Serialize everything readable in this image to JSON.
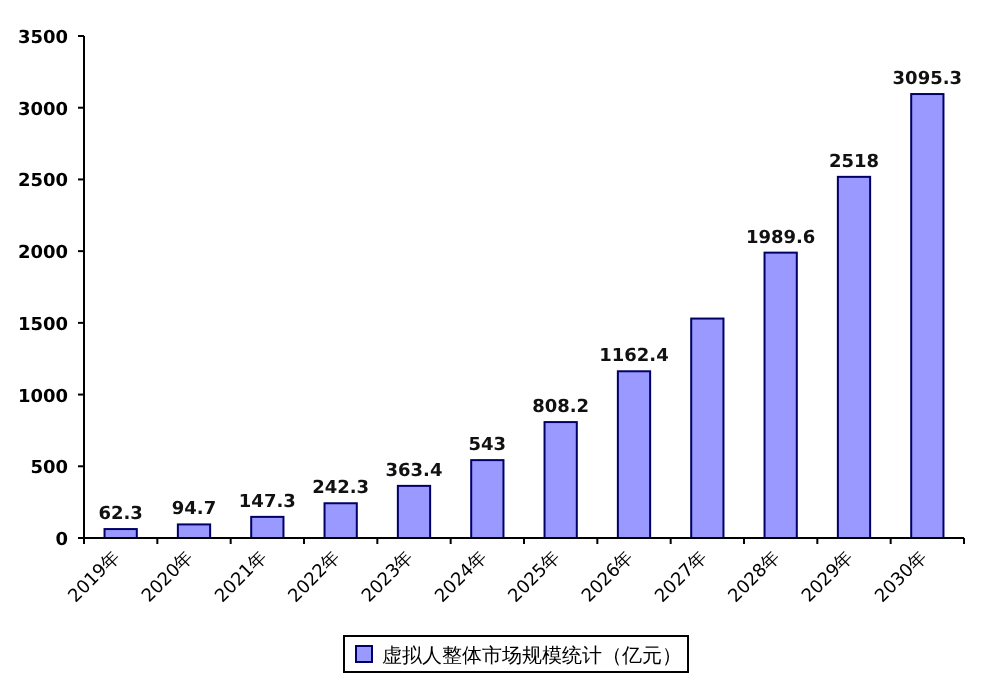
{
  "chart_data": {
    "type": "bar",
    "categories": [
      "2019年",
      "2020年",
      "2021年",
      "2022年",
      "2023年",
      "2024年",
      "2025年",
      "2026年",
      "2027年",
      "2028年",
      "2029年",
      "2030年"
    ],
    "series": [
      {
        "name": "虚拟人整体市场规模统计（亿元）",
        "color": "#9999ff",
        "values": [
          62.3,
          94.7,
          147.3,
          242.3,
          363.4,
          543,
          808.2,
          1162.4,
          1530,
          1989.6,
          2518,
          3095.3
        ],
        "value_labels": [
          "62.3",
          "94.7",
          "147.3",
          "242.3",
          "363.4",
          "543",
          "808.2",
          "1162.4",
          null,
          "1989.6",
          "2518",
          "3095.3"
        ]
      }
    ],
    "ylim": [
      0,
      3500
    ],
    "yticks": [
      0,
      500,
      1000,
      1500,
      2000,
      2500,
      3000,
      3500
    ],
    "grid": false,
    "legend": "bottom"
  }
}
